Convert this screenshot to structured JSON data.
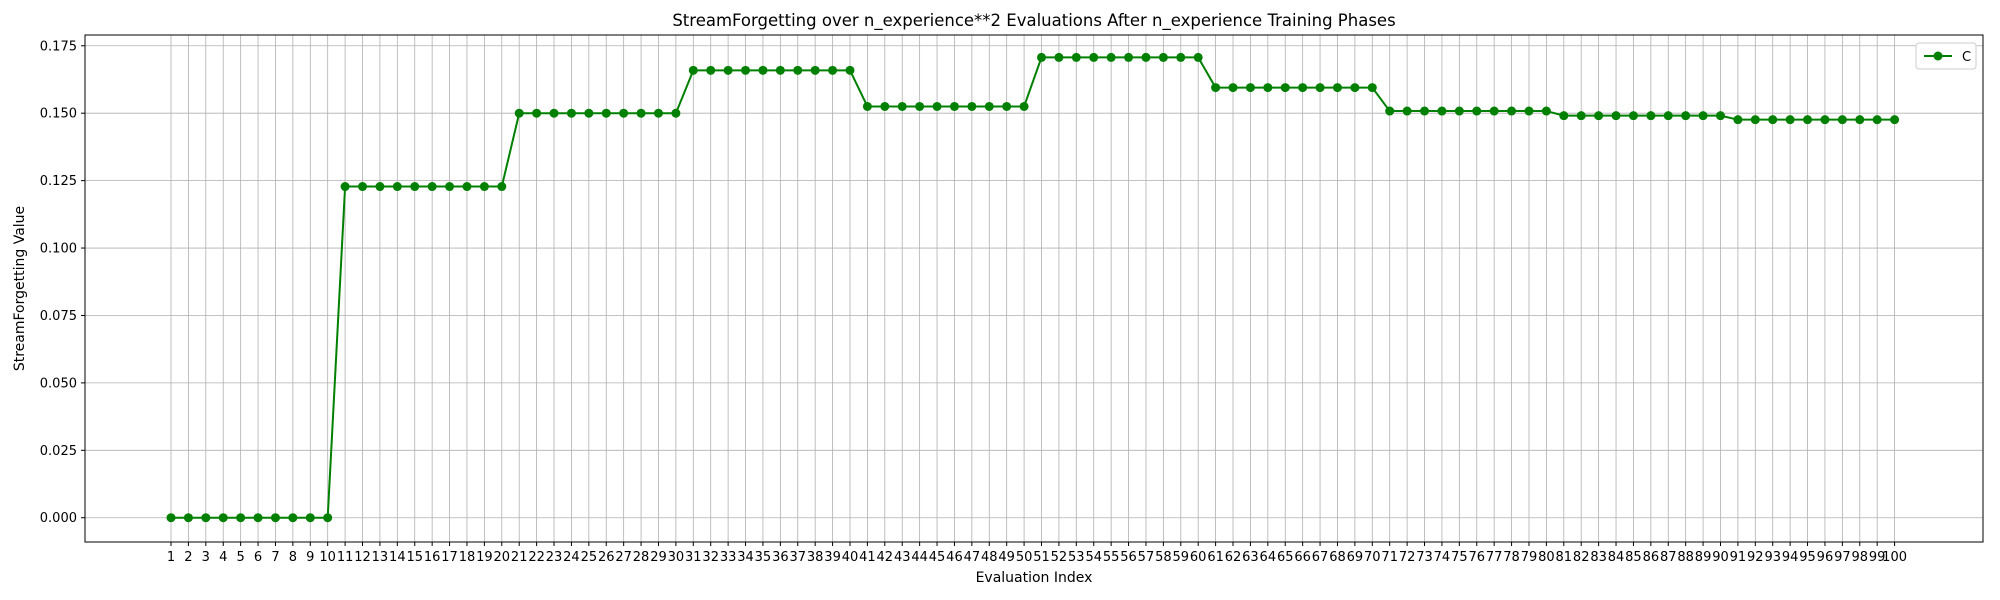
{
  "chart_data": {
    "type": "line",
    "title": "StreamForgetting over n_experience**2 Evaluations After n_experience Training Phases",
    "xlabel": "Evaluation Index",
    "ylabel": "StreamForgetting Value",
    "ylim": [
      -0.009,
      0.179
    ],
    "yticks": [
      0.0,
      0.025,
      0.05,
      0.075,
      0.1,
      0.125,
      0.15,
      0.175
    ],
    "ytick_labels": [
      "0.000",
      "0.025",
      "0.050",
      "0.075",
      "0.100",
      "0.125",
      "0.150",
      "0.175"
    ],
    "grid": true,
    "legend_position": "top-right",
    "series": [
      {
        "name": "C",
        "color": "#008000",
        "marker": "circle",
        "x": [
          1,
          2,
          3,
          4,
          5,
          6,
          7,
          8,
          9,
          10,
          11,
          12,
          13,
          14,
          15,
          16,
          17,
          18,
          19,
          20,
          21,
          22,
          23,
          24,
          25,
          26,
          27,
          28,
          29,
          30,
          31,
          32,
          33,
          34,
          35,
          36,
          37,
          38,
          39,
          40,
          41,
          42,
          43,
          44,
          45,
          46,
          47,
          48,
          49,
          50,
          51,
          52,
          53,
          54,
          55,
          56,
          57,
          58,
          59,
          60,
          61,
          62,
          63,
          64,
          65,
          66,
          67,
          68,
          69,
          70,
          71,
          72,
          73,
          74,
          75,
          76,
          77,
          78,
          79,
          80,
          81,
          82,
          83,
          84,
          85,
          86,
          87,
          88,
          89,
          90,
          91,
          92,
          93,
          94,
          95,
          96,
          97,
          98,
          99,
          100
        ],
        "values": [
          0,
          0,
          0,
          0,
          0,
          0,
          0,
          0,
          0,
          0,
          0.1228,
          0.1228,
          0.1228,
          0.1228,
          0.1228,
          0.1228,
          0.1228,
          0.1228,
          0.1228,
          0.1228,
          0.15,
          0.15,
          0.15,
          0.15,
          0.15,
          0.15,
          0.15,
          0.15,
          0.15,
          0.15,
          0.1659,
          0.1659,
          0.1659,
          0.1659,
          0.1659,
          0.1659,
          0.1659,
          0.1659,
          0.1659,
          0.1659,
          0.1525,
          0.1525,
          0.1525,
          0.1525,
          0.1525,
          0.1525,
          0.1525,
          0.1525,
          0.1525,
          0.1525,
          0.1707,
          0.1707,
          0.1707,
          0.1707,
          0.1707,
          0.1707,
          0.1707,
          0.1707,
          0.1707,
          0.1707,
          0.1595,
          0.1595,
          0.1595,
          0.1595,
          0.1595,
          0.1595,
          0.1595,
          0.1595,
          0.1595,
          0.1595,
          0.1508,
          0.1508,
          0.1508,
          0.1508,
          0.1508,
          0.1508,
          0.1508,
          0.1508,
          0.1508,
          0.1508,
          0.1491,
          0.1491,
          0.1491,
          0.1491,
          0.1491,
          0.1491,
          0.1491,
          0.1491,
          0.1491,
          0.1491,
          0.1476,
          0.1476,
          0.1476,
          0.1476,
          0.1476,
          0.1476,
          0.1476,
          0.1476,
          0.1476,
          0.1476
        ]
      }
    ]
  }
}
